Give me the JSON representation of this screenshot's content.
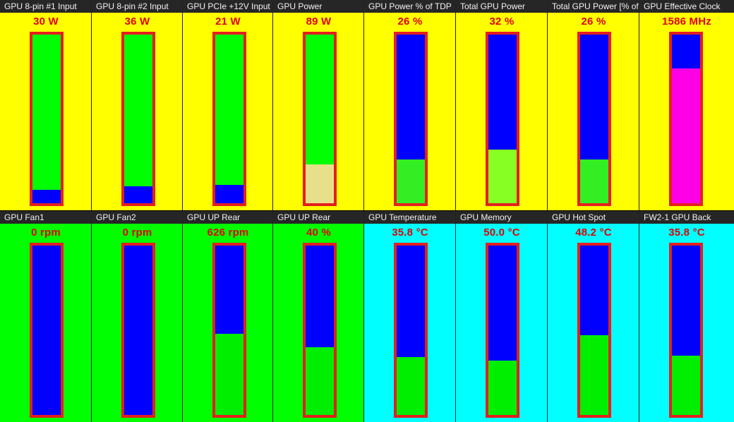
{
  "rows": [
    {
      "panels": [
        {
          "label": "GPU 8-pin #1 Input",
          "value": "30 W",
          "bg": "#ffff00",
          "empty": "#00ff00",
          "fill": "#0000ff",
          "level": 0.08
        },
        {
          "label": "GPU 8-pin #2 Input",
          "value": "36 W",
          "bg": "#ffff00",
          "empty": "#00ff00",
          "fill": "#0000ff",
          "level": 0.1
        },
        {
          "label": "GPU PCIe +12V Input",
          "value": "21 W",
          "bg": "#ffff00",
          "empty": "#00ff00",
          "fill": "#0000ff",
          "level": 0.11
        },
        {
          "label": "GPU Power",
          "value": "89 W",
          "bg": "#ffff00",
          "empty": "#00ff00",
          "fill": "#e6e08a",
          "level": 0.23
        },
        {
          "label": "GPU Power % of TDP",
          "value": "26 %",
          "bg": "#ffff00",
          "empty": "#0000ff",
          "fill": "#33ee22",
          "level": 0.26
        },
        {
          "label": "Total GPU Power",
          "value": "32 %",
          "bg": "#ffff00",
          "empty": "#0000ff",
          "fill": "#88ff22",
          "level": 0.32
        },
        {
          "label": "Total GPU Power [% of",
          "value": "26 %",
          "bg": "#ffff00",
          "empty": "#0000ff",
          "fill": "#33ee22",
          "level": 0.26
        },
        {
          "label": "GPU Effective Clock",
          "value": "1586 MHz",
          "bg": "#ffff00",
          "empty": "#0000ff",
          "fill": "#ff00e6",
          "level": 0.8
        }
      ]
    },
    {
      "panels": [
        {
          "label": "GPU Fan1",
          "value": "0 rpm",
          "bg": "#00ff00",
          "empty": "#0000ff",
          "fill": "#00ee00",
          "level": 0.0
        },
        {
          "label": "GPU Fan2",
          "value": "0 rpm",
          "bg": "#00ff00",
          "empty": "#0000ff",
          "fill": "#00ee00",
          "level": 0.0
        },
        {
          "label": "GPU UP Rear",
          "value": "626 rpm",
          "bg": "#00ff00",
          "empty": "#0000ff",
          "fill": "#00ee00",
          "level": 0.48
        },
        {
          "label": "GPU UP Rear",
          "value": "40 %",
          "bg": "#00ff00",
          "empty": "#0000ff",
          "fill": "#00ee00",
          "level": 0.4
        },
        {
          "label": "GPU Temperature",
          "value": "35.8 °C",
          "bg": "#00ffff",
          "empty": "#0000ff",
          "fill": "#00ee00",
          "level": 0.34
        },
        {
          "label": "GPU Memory",
          "value": "50.0 °C",
          "bg": "#00ffff",
          "empty": "#0000ff",
          "fill": "#00ee00",
          "level": 0.32
        },
        {
          "label": "GPU Hot Spot",
          "value": "48.2 °C",
          "bg": "#00ffff",
          "empty": "#0000ff",
          "fill": "#00ee00",
          "level": 0.47
        },
        {
          "label": "FW2-1 GPU Back",
          "value": "35.8 °C",
          "bg": "#00ffff",
          "empty": "#0000ff",
          "fill": "#00ee00",
          "level": 0.35
        }
      ]
    }
  ]
}
